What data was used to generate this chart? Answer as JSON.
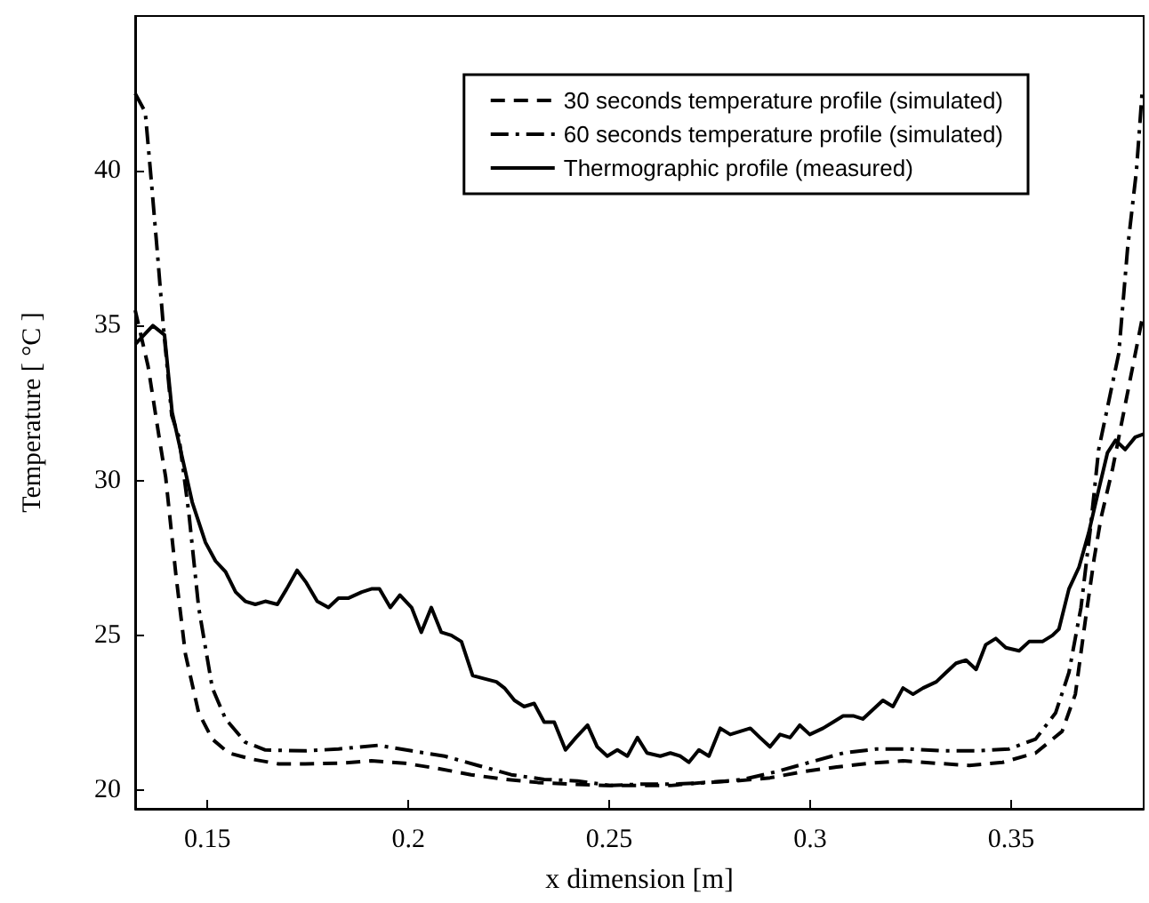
{
  "chart_data": {
    "type": "line",
    "xlabel": "x dimension [m]",
    "ylabel": "Temperature [ °C ]",
    "xlim": [
      0.132,
      0.383
    ],
    "ylim": [
      19.4,
      45
    ],
    "xticks": [
      0.15,
      0.2,
      0.25,
      0.3,
      0.35
    ],
    "yticks": [
      20,
      25,
      30,
      35,
      40
    ],
    "grid": false,
    "legend": "top right",
    "marker": "none",
    "series": [
      {
        "name": "30 seconds temperature profile (simulated)",
        "color": "#000000",
        "line_style": "dashed",
        "x": [
          0.132,
          0.1352,
          0.1382,
          0.1396,
          0.1421,
          0.1445,
          0.1478,
          0.1512,
          0.1553,
          0.1611,
          0.1677,
          0.1743,
          0.1826,
          0.1908,
          0.1991,
          0.2074,
          0.2156,
          0.2239,
          0.2322,
          0.2404,
          0.2487,
          0.257,
          0.2652,
          0.2735,
          0.2818,
          0.29,
          0.2983,
          0.3066,
          0.3148,
          0.3231,
          0.3314,
          0.3396,
          0.3479,
          0.3561,
          0.3627,
          0.366,
          0.3685,
          0.3707,
          0.3724,
          0.3753,
          0.3797,
          0.3826,
          0.383
        ],
        "values": [
          35.5,
          33.7,
          31.2,
          30.1,
          27.0,
          24.4,
          22.5,
          21.65,
          21.2,
          21.0,
          20.85,
          20.85,
          20.87,
          20.95,
          20.87,
          20.7,
          20.5,
          20.35,
          20.25,
          20.2,
          20.15,
          20.15,
          20.15,
          20.25,
          20.3,
          20.4,
          20.6,
          20.75,
          20.87,
          20.95,
          20.87,
          20.8,
          20.9,
          21.2,
          21.9,
          23.1,
          25.5,
          27.5,
          28.8,
          30.4,
          33.3,
          35.2,
          35.4
        ]
      },
      {
        "name": "60 seconds temperature profile (simulated)",
        "color": "#000000",
        "line_style": "dashdot",
        "x": [
          0.132,
          0.1345,
          0.136,
          0.1375,
          0.139,
          0.1411,
          0.1429,
          0.1454,
          0.1478,
          0.1512,
          0.1545,
          0.1594,
          0.1644,
          0.1743,
          0.1826,
          0.1925,
          0.2008,
          0.209,
          0.2173,
          0.2256,
          0.2338,
          0.2421,
          0.2503,
          0.2586,
          0.2669,
          0.2751,
          0.2834,
          0.2916,
          0.2999,
          0.3082,
          0.3164,
          0.3247,
          0.333,
          0.3413,
          0.3495,
          0.3561,
          0.3611,
          0.3644,
          0.3674,
          0.3697,
          0.3718,
          0.3768,
          0.379,
          0.3812,
          0.3826,
          0.383
        ],
        "values": [
          42.5,
          41.9,
          39.7,
          37.4,
          35.0,
          32.1,
          31.4,
          28.9,
          25.9,
          23.3,
          22.3,
          21.55,
          21.3,
          21.27,
          21.33,
          21.45,
          21.27,
          21.1,
          20.8,
          20.5,
          20.35,
          20.3,
          20.15,
          20.2,
          20.2,
          20.25,
          20.35,
          20.6,
          20.9,
          21.2,
          21.33,
          21.33,
          21.27,
          21.27,
          21.33,
          21.65,
          22.5,
          23.8,
          25.9,
          28.4,
          31.0,
          34.1,
          37.5,
          40.0,
          42.5,
          42.6
        ]
      },
      {
        "name": "Thermographic profile (measured)",
        "color": "#000000",
        "line_style": "solid",
        "x": [
          0.132,
          0.1364,
          0.1393,
          0.1412,
          0.1462,
          0.1495,
          0.152,
          0.1545,
          0.157,
          0.1594,
          0.1619,
          0.1644,
          0.1674,
          0.1697,
          0.1723,
          0.1746,
          0.1773,
          0.1801,
          0.1826,
          0.185,
          0.1884,
          0.1908,
          0.1928,
          0.1955,
          0.1979,
          0.2008,
          0.2032,
          0.2057,
          0.2082,
          0.2107,
          0.2132,
          0.216,
          0.2189,
          0.2219,
          0.2239,
          0.2264,
          0.2288,
          0.2313,
          0.2338,
          0.2363,
          0.2391,
          0.2417,
          0.2446,
          0.247,
          0.2495,
          0.252,
          0.2545,
          0.257,
          0.2594,
          0.2627,
          0.2652,
          0.2677,
          0.2698,
          0.2723,
          0.2748,
          0.2776,
          0.2801,
          0.2826,
          0.2851,
          0.2875,
          0.29,
          0.2925,
          0.295,
          0.2974,
          0.2999,
          0.3032,
          0.3057,
          0.3082,
          0.3107,
          0.3131,
          0.3156,
          0.3181,
          0.3206,
          0.3231,
          0.3256,
          0.3281,
          0.3314,
          0.3338,
          0.3363,
          0.3388,
          0.3413,
          0.3437,
          0.3462,
          0.3487,
          0.352,
          0.3545,
          0.3578,
          0.3603,
          0.3619,
          0.3644,
          0.3669,
          0.3693,
          0.3718,
          0.374,
          0.376,
          0.3784,
          0.3809,
          0.383
        ],
        "values": [
          34.4,
          35.0,
          34.7,
          32.2,
          29.3,
          28.0,
          27.4,
          27.05,
          26.4,
          26.1,
          26.0,
          26.1,
          26.0,
          26.5,
          27.1,
          26.7,
          26.1,
          25.9,
          26.2,
          26.2,
          26.4,
          26.5,
          26.5,
          25.9,
          26.3,
          25.9,
          25.1,
          25.9,
          25.1,
          25.0,
          24.8,
          23.7,
          23.6,
          23.5,
          23.3,
          22.9,
          22.7,
          22.8,
          22.2,
          22.2,
          21.3,
          21.7,
          22.1,
          21.4,
          21.1,
          21.3,
          21.1,
          21.7,
          21.2,
          21.1,
          21.2,
          21.1,
          20.9,
          21.3,
          21.1,
          22.0,
          21.8,
          21.9,
          22.0,
          21.7,
          21.4,
          21.8,
          21.7,
          22.1,
          21.8,
          22.0,
          22.2,
          22.4,
          22.4,
          22.3,
          22.6,
          22.9,
          22.7,
          23.3,
          23.1,
          23.3,
          23.5,
          23.8,
          24.1,
          24.2,
          23.9,
          24.7,
          24.9,
          24.6,
          24.5,
          24.8,
          24.8,
          25.0,
          25.2,
          26.5,
          27.2,
          28.3,
          29.7,
          30.9,
          31.3,
          31.0,
          31.4,
          31.5
        ]
      }
    ]
  }
}
